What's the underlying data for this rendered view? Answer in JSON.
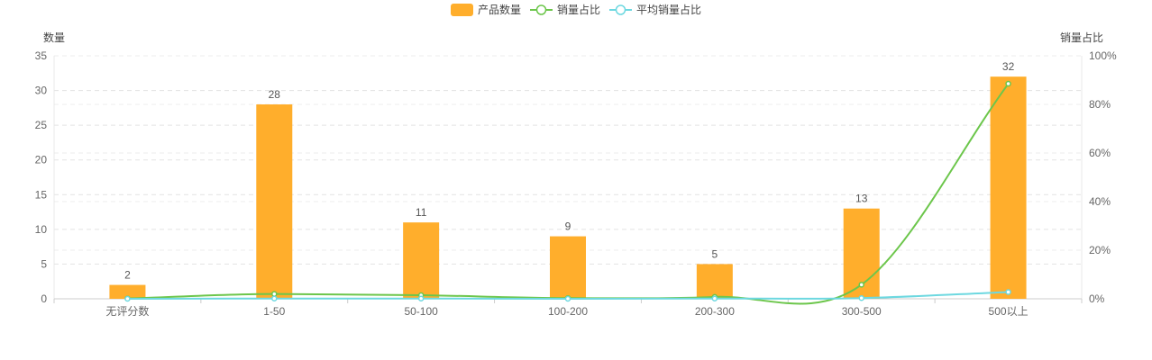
{
  "chart_data": {
    "type": "bar",
    "categories": [
      "无评分数",
      "1-50",
      "50-100",
      "100-200",
      "200-300",
      "300-500",
      "500以上"
    ],
    "series": [
      {
        "name": "产品数量",
        "type": "bar",
        "axis": "left",
        "color": "#FFAE2C",
        "values": [
          2,
          28,
          11,
          9,
          5,
          13,
          32
        ]
      },
      {
        "name": "销量占比",
        "type": "line",
        "axis": "right",
        "color": "#6CC64B",
        "values": [
          0.1,
          2.0,
          1.5,
          0.3,
          0.8,
          5.8,
          88.5
        ]
      },
      {
        "name": "平均销量占比",
        "type": "line",
        "axis": "right",
        "color": "#6DD8E0",
        "values": [
          0.0,
          0.1,
          0.1,
          0.0,
          0.1,
          0.3,
          2.8
        ]
      }
    ],
    "ylabel_left": "数量",
    "ylabel_right": "销量占比",
    "ylim_left": [
      0,
      35
    ],
    "yticks_left": [
      0,
      5,
      10,
      15,
      20,
      25,
      30,
      35
    ],
    "ylim_right": [
      0,
      100
    ],
    "yticks_right": [
      "0%",
      "20%",
      "40%",
      "60%",
      "80%",
      "100%"
    ],
    "data_labels": [
      "2",
      "28",
      "11",
      "9",
      "5",
      "13",
      "32"
    ],
    "grid": true,
    "legend_position": "top-center"
  }
}
